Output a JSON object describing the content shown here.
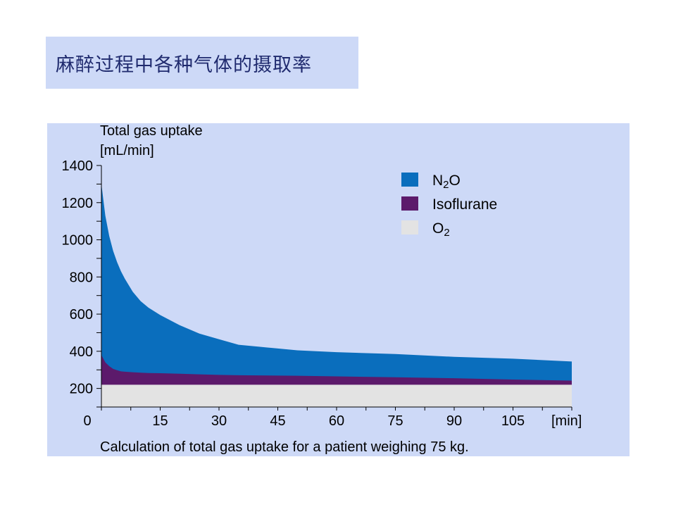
{
  "slide": {
    "title": "麻醉过程中各种气体的摄取率"
  },
  "chart_data": {
    "type": "area",
    "stacked": true,
    "ylabel_line1": "Total gas uptake",
    "ylabel_line2": "[mL/min]",
    "xlabel": "[min]",
    "caption": "Calculation of total gas uptake for a patient weighing 75 kg.",
    "xlim": [
      0,
      120
    ],
    "ylim": [
      100,
      1400
    ],
    "x_ticks": [
      0,
      15,
      30,
      45,
      60,
      75,
      90,
      105
    ],
    "x_tick_labels": [
      "0",
      "15",
      "30",
      "45",
      "60",
      "75",
      "90",
      "105"
    ],
    "y_ticks": [
      200,
      400,
      600,
      800,
      1000,
      1200,
      1400
    ],
    "y_tick_labels": [
      "200",
      "400",
      "600",
      "800",
      "1000",
      "1200",
      "1400"
    ],
    "legend_position": "top-right",
    "x": [
      0,
      1,
      2,
      3,
      4,
      5,
      6,
      8,
      10,
      12,
      15,
      20,
      25,
      30,
      35,
      40,
      45,
      50,
      60,
      75,
      90,
      105,
      120
    ],
    "totals": {
      "o2": [
        220,
        220,
        220,
        220,
        220,
        220,
        220,
        220,
        220,
        220,
        220,
        220,
        220,
        220,
        220,
        220,
        220,
        220,
        220,
        220,
        220,
        220,
        220
      ],
      "isoflurane": [
        380,
        340,
        320,
        305,
        298,
        292,
        290,
        287,
        285,
        283,
        282,
        279,
        276,
        273,
        271,
        270,
        269,
        268,
        265,
        260,
        255,
        248,
        242
      ],
      "n2o": [
        1300,
        1130,
        1020,
        940,
        880,
        830,
        790,
        720,
        670,
        635,
        595,
        540,
        495,
        465,
        435,
        425,
        415,
        405,
        395,
        385,
        370,
        360,
        345
      ]
    },
    "series": [
      {
        "key": "o2",
        "name": "O2",
        "label_main": "O",
        "label_sub": "2",
        "color": "#e3e3e3"
      },
      {
        "key": "isoflurane",
        "name": "Isoflurane",
        "label_main": "Isoflurane",
        "label_sub": "",
        "color": "#5c1a6b"
      },
      {
        "key": "n2o",
        "name": "N2O",
        "label_main": "N",
        "label_sub": "2",
        "label_tail": "O",
        "color": "#0a6ebd"
      }
    ],
    "legend_order": [
      "n2o",
      "isoflurane",
      "o2"
    ]
  }
}
